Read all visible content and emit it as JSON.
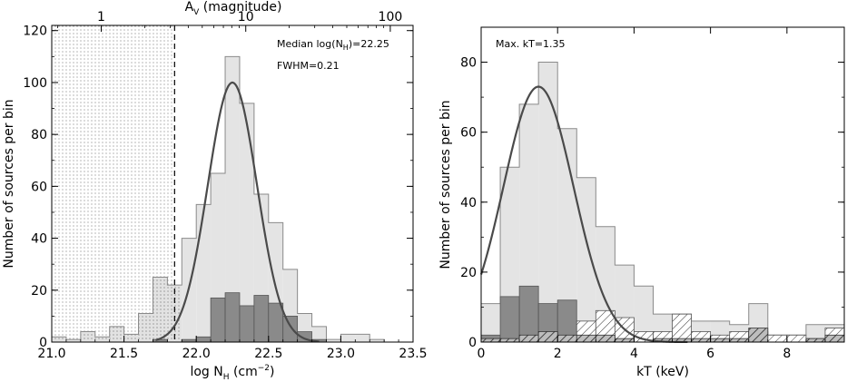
{
  "chart_data": [
    {
      "type": "histogram",
      "xlabel": "log N",
      "xlabel_sub": "H",
      "xlabel_unit": " (cm",
      "xlabel_exp": "−2",
      "xlabel_close": ")",
      "ylabel": "Number of sources per bin",
      "top_axis_label": "A",
      "top_axis_sub": "V",
      "top_axis_unit": " (magnitude)",
      "top_ticks": [
        "1",
        "10",
        "100"
      ],
      "top_tick_av": [
        1,
        10,
        100
      ],
      "xlim": [
        21.0,
        23.5
      ],
      "ylim": [
        0,
        122
      ],
      "xticks": [
        "21.0",
        "21.5",
        "22.0",
        "22.5",
        "23.0",
        "23.5"
      ],
      "yticks": [
        "0",
        "20",
        "40",
        "60",
        "80",
        "100",
        "120"
      ],
      "bin_edges": [
        21.0,
        21.1,
        21.2,
        21.3,
        21.4,
        21.5,
        21.6,
        21.7,
        21.8,
        21.9,
        22.0,
        22.1,
        22.2,
        22.3,
        22.4,
        22.5,
        22.6,
        22.7,
        22.8,
        22.9,
        23.0,
        23.1,
        23.2,
        23.3,
        23.4,
        23.5
      ],
      "series": [
        {
          "values": [
            2,
            1,
            4,
            2,
            6,
            3,
            11,
            25,
            22,
            40,
            53,
            65,
            110,
            92,
            57,
            46,
            28,
            11,
            6,
            1,
            3,
            3,
            1,
            0,
            0
          ]
        },
        {
          "values": [
            0,
            0,
            0,
            0,
            0,
            0,
            0,
            1,
            0,
            1,
            2,
            17,
            19,
            14,
            18,
            15,
            10,
            4,
            1,
            0,
            0,
            0,
            0,
            0,
            0
          ]
        }
      ],
      "fit": {
        "median_log_nh": 22.25,
        "fwhm": 0.21,
        "peak": 100
      },
      "cut_x": 21.85,
      "annotations": [
        {
          "prefix": "Median log(N",
          "sub": "H",
          "suffix": ")=22.25"
        },
        {
          "text": "FWHM=0.21"
        }
      ]
    },
    {
      "type": "histogram",
      "xlabel": "kT (keV)",
      "ylabel": "Number of sources per bin",
      "xlim": [
        0,
        9.5
      ],
      "ylim": [
        0,
        90
      ],
      "xticks": [
        "0",
        "2",
        "4",
        "6",
        "8"
      ],
      "yticks": [
        "0",
        "20",
        "40",
        "60",
        "80"
      ],
      "bin_edges": [
        0.0,
        0.5,
        1.0,
        1.5,
        2.0,
        2.5,
        3.0,
        3.5,
        4.0,
        4.5,
        5.0,
        5.5,
        6.0,
        6.5,
        7.0,
        7.5,
        8.0,
        8.5,
        9.0,
        9.5
      ],
      "series": [
        {
          "values": [
            11,
            50,
            68,
            80,
            61,
            47,
            33,
            22,
            16,
            8,
            8,
            6,
            6,
            5,
            11,
            2,
            2,
            5,
            5
          ]
        },
        {
          "values": [
            2,
            13,
            16,
            11,
            12,
            6,
            9,
            7,
            3,
            3,
            8,
            3,
            2,
            3,
            3,
            2,
            2,
            1,
            4
          ]
        },
        {
          "values": [
            1,
            1,
            2,
            3,
            2,
            2,
            2,
            1,
            0,
            1,
            1,
            1,
            1,
            1,
            4,
            0,
            0,
            1,
            2
          ]
        }
      ],
      "fit": {
        "max_kt": 1.35,
        "peak_x": 1.5,
        "peak": 73
      },
      "annotations": [
        {
          "text": "Max. kT=1.35"
        }
      ]
    }
  ]
}
